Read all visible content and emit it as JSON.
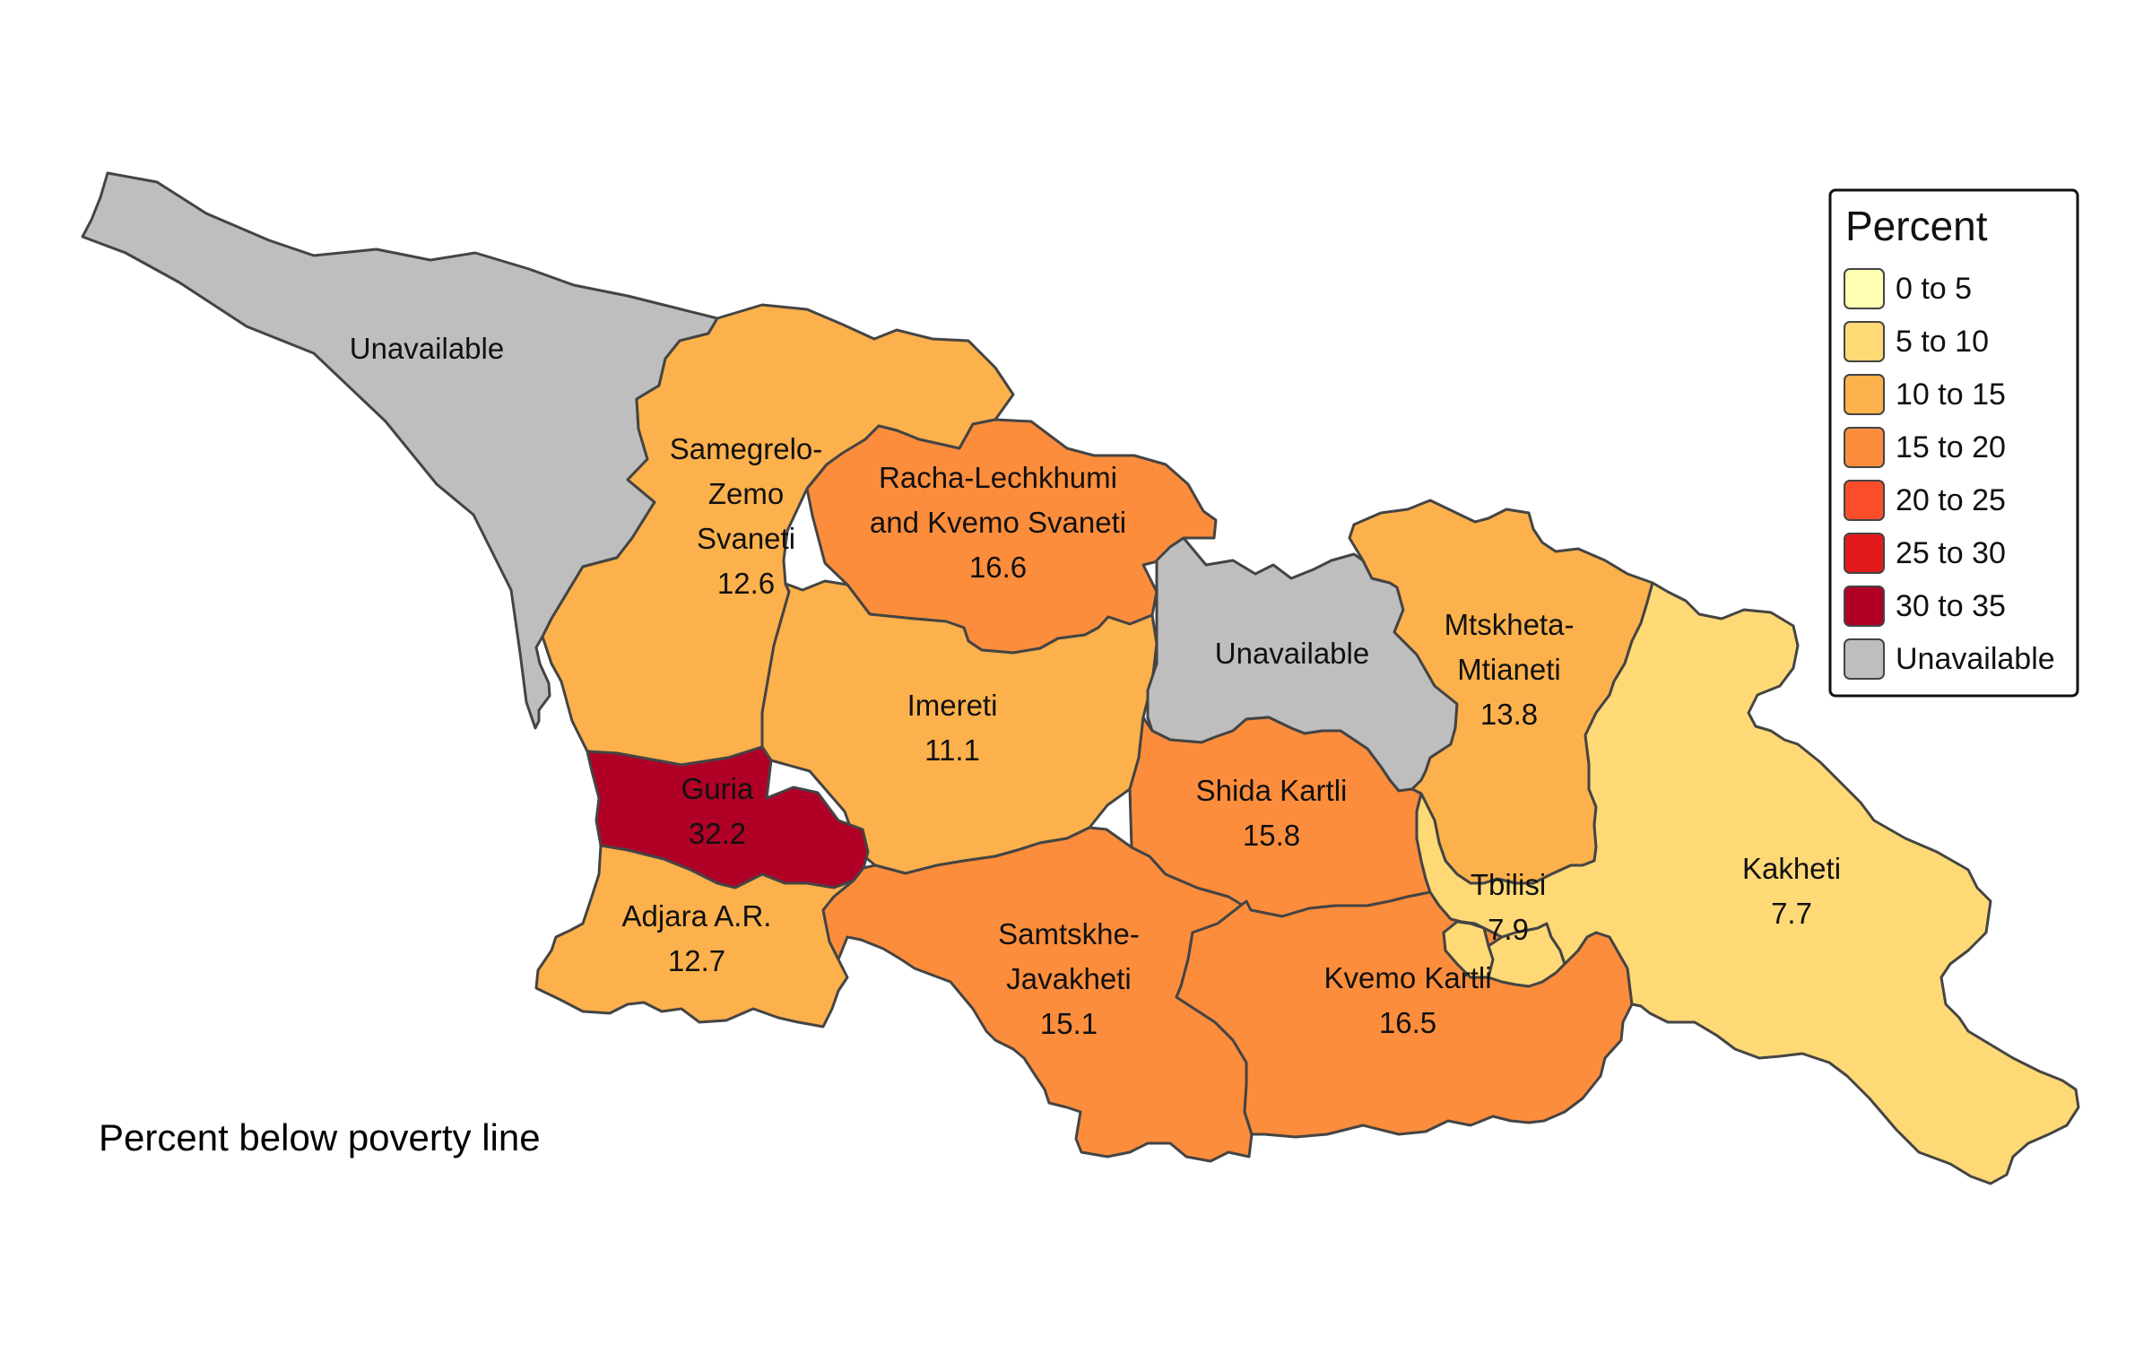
{
  "map": {
    "caption": "Percent below poverty line",
    "regions": [
      {
        "id": "abkhazia",
        "label": [
          "Unavailable"
        ],
        "value": null,
        "category": "Unavailable",
        "fill": "#bebebe"
      },
      {
        "id": "samegrelo",
        "label": [
          "Samegrelo-",
          "Zemo",
          "Svaneti",
          "12.6"
        ],
        "value": 12.6,
        "category": "10 to 15",
        "fill": "#fcb14c"
      },
      {
        "id": "racha",
        "label": [
          "Racha-Lechkhumi",
          "and Kvemo Svaneti",
          "16.6"
        ],
        "value": 16.6,
        "category": "15 to 20",
        "fill": "#fc8d3c"
      },
      {
        "id": "imereti",
        "label": [
          "Imereti",
          "11.1"
        ],
        "value": 11.1,
        "category": "10 to 15",
        "fill": "#fcb14c"
      },
      {
        "id": "guria",
        "label": [
          "Guria",
          "32.2"
        ],
        "value": 32.2,
        "category": "30 to 35",
        "fill": "#b10026"
      },
      {
        "id": "adjara",
        "label": [
          "Adjara A.R.",
          "12.7"
        ],
        "value": 12.7,
        "category": "10 to 15",
        "fill": "#fcb14c"
      },
      {
        "id": "samtskhe",
        "label": [
          "Samtskhe-",
          "Javakheti",
          "15.1"
        ],
        "value": 15.1,
        "category": "15 to 20",
        "fill": "#fc8d3c"
      },
      {
        "id": "south-ossetia",
        "label": [
          "Unavailable"
        ],
        "value": null,
        "category": "Unavailable",
        "fill": "#bebebe"
      },
      {
        "id": "shida-kartli",
        "label": [
          "Shida Kartli",
          "15.8"
        ],
        "value": 15.8,
        "category": "15 to 20",
        "fill": "#fc8d3c"
      },
      {
        "id": "mtskheta",
        "label": [
          "Mtskheta-",
          "Mtianeti",
          "13.8"
        ],
        "value": 13.8,
        "category": "10 to 15",
        "fill": "#fcb14c"
      },
      {
        "id": "kvemo-kartli",
        "label": [
          "Kvemo Kartli",
          "16.5"
        ],
        "value": 16.5,
        "category": "15 to 20",
        "fill": "#fc8d3c"
      },
      {
        "id": "tbilisi",
        "label": [
          "Tbilisi",
          "7.9"
        ],
        "value": 7.9,
        "category": "5 to 10",
        "fill": "#fed976"
      },
      {
        "id": "kakheti",
        "label": [
          "Kakheti",
          "7.7"
        ],
        "value": 7.7,
        "category": "5 to 10",
        "fill": "#fed976"
      }
    ]
  },
  "legend": {
    "title": "Percent",
    "items": [
      {
        "label": "0 to 5",
        "color": "#ffffb2"
      },
      {
        "label": "5 to 10",
        "color": "#fed976"
      },
      {
        "label": "10 to 15",
        "color": "#fcb14c"
      },
      {
        "label": "15 to 20",
        "color": "#fc8d3c"
      },
      {
        "label": "20 to 25",
        "color": "#fc4e2a"
      },
      {
        "label": "25 to 30",
        "color": "#e31a1c"
      },
      {
        "label": "30 to 35",
        "color": "#b10026"
      },
      {
        "label": "Unavailable",
        "color": "#bebebe"
      }
    ]
  }
}
